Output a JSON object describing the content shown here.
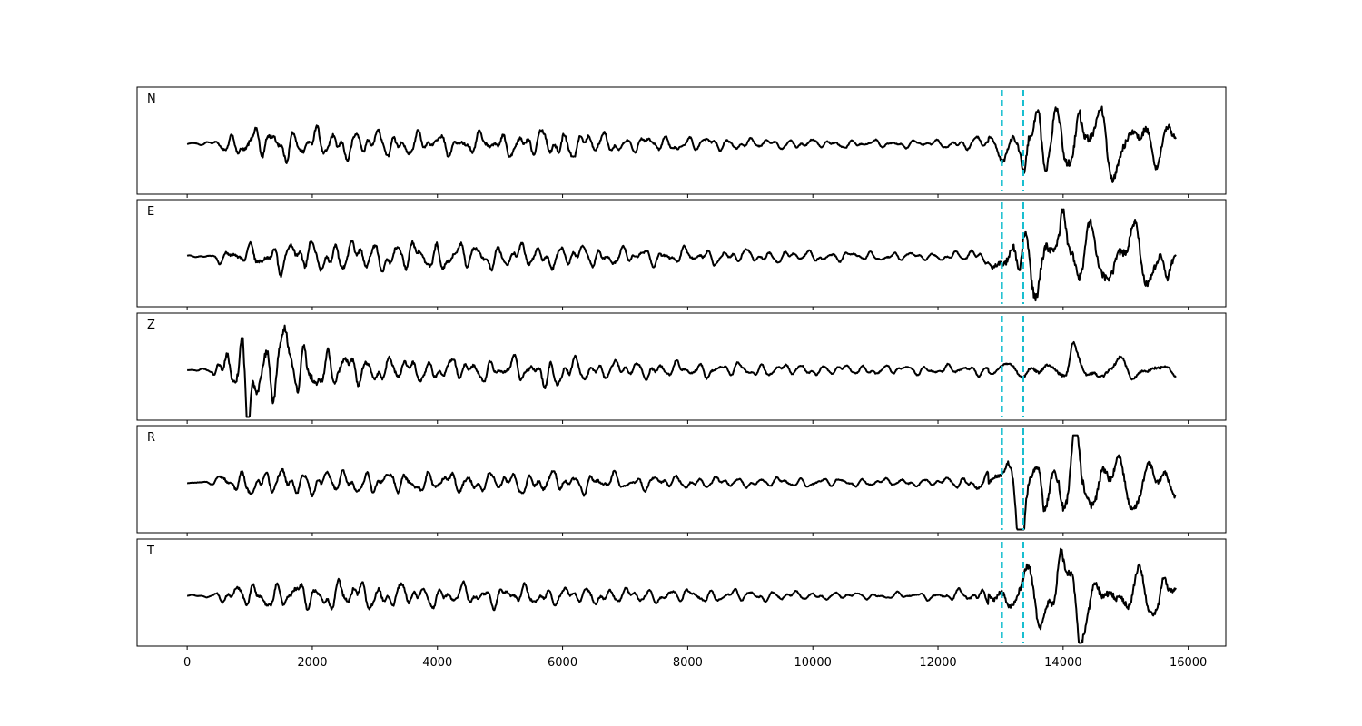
{
  "chart_data": {
    "type": "line",
    "title": "",
    "xlabel": "",
    "ylabel": "",
    "xlim": [
      -800,
      16600
    ],
    "x_ticks": [
      "0",
      "2000",
      "4000",
      "6000",
      "8000",
      "10000",
      "12000",
      "14000",
      "16000"
    ],
    "x_tick_values": [
      0,
      2000,
      4000,
      6000,
      8000,
      10000,
      12000,
      14000,
      16000
    ],
    "signal_range": [
      0,
      15800
    ],
    "grid": false,
    "pick_lines": [
      13020,
      13360
    ],
    "colors": {
      "trace": "#000000",
      "pick": "#17becf"
    },
    "panels": [
      {
        "name": "N",
        "envelope": [
          [
            0,
            0.02
          ],
          [
            400,
            0.06
          ],
          [
            500,
            0.18
          ],
          [
            1000,
            0.42
          ],
          [
            2000,
            0.4
          ],
          [
            3000,
            0.36
          ],
          [
            4000,
            0.28
          ],
          [
            5000,
            0.28
          ],
          [
            5300,
            0.34
          ],
          [
            6000,
            0.4
          ],
          [
            7000,
            0.22
          ],
          [
            8000,
            0.2
          ],
          [
            9000,
            0.14
          ],
          [
            10000,
            0.12
          ],
          [
            11000,
            0.1
          ],
          [
            12000,
            0.1
          ],
          [
            12800,
            0.2
          ],
          [
            13000,
            0.34
          ],
          [
            13400,
            0.95
          ],
          [
            14000,
            1.0
          ],
          [
            14500,
            0.9
          ],
          [
            15800,
            0.7
          ]
        ],
        "peaks": [
          [
            13380,
            -0.85
          ],
          [
            14250,
            0.95
          ],
          [
            13600,
            0.75
          ]
        ]
      },
      {
        "name": "E",
        "envelope": [
          [
            0,
            0.02
          ],
          [
            400,
            0.05
          ],
          [
            500,
            0.15
          ],
          [
            1500,
            0.42
          ],
          [
            2000,
            0.42
          ],
          [
            3000,
            0.4
          ],
          [
            4000,
            0.38
          ],
          [
            5000,
            0.32
          ],
          [
            6000,
            0.3
          ],
          [
            7000,
            0.24
          ],
          [
            8000,
            0.22
          ],
          [
            9000,
            0.18
          ],
          [
            10000,
            0.14
          ],
          [
            11000,
            0.12
          ],
          [
            12000,
            0.1
          ],
          [
            12800,
            0.2
          ],
          [
            13000,
            0.62
          ],
          [
            13400,
            0.95
          ],
          [
            14000,
            1.0
          ],
          [
            15000,
            0.8
          ],
          [
            15800,
            0.75
          ]
        ],
        "peaks": [
          [
            14000,
            0.95
          ],
          [
            13300,
            -0.78
          ],
          [
            15650,
            -0.7
          ]
        ]
      },
      {
        "name": "Z",
        "envelope": [
          [
            0,
            0.02
          ],
          [
            400,
            0.06
          ],
          [
            450,
            0.25
          ],
          [
            900,
            1.0
          ],
          [
            1500,
            0.75
          ],
          [
            2000,
            0.6
          ],
          [
            3000,
            0.35
          ],
          [
            4000,
            0.3
          ],
          [
            5000,
            0.28
          ],
          [
            5900,
            0.4
          ],
          [
            6500,
            0.25
          ],
          [
            8000,
            0.2
          ],
          [
            9000,
            0.18
          ],
          [
            10000,
            0.14
          ],
          [
            12000,
            0.12
          ],
          [
            13000,
            0.14
          ],
          [
            13400,
            0.24
          ],
          [
            14000,
            0.32
          ],
          [
            15000,
            0.28
          ],
          [
            15800,
            0.22
          ]
        ],
        "peaks": [
          [
            960,
            -1.0
          ],
          [
            1540,
            0.65
          ],
          [
            5900,
            -0.42
          ],
          [
            14150,
            0.42
          ]
        ]
      },
      {
        "name": "R",
        "envelope": [
          [
            0,
            0.02
          ],
          [
            400,
            0.05
          ],
          [
            500,
            0.2
          ],
          [
            1000,
            0.36
          ],
          [
            2000,
            0.34
          ],
          [
            3000,
            0.3
          ],
          [
            4000,
            0.26
          ],
          [
            5000,
            0.26
          ],
          [
            5500,
            0.3
          ],
          [
            7000,
            0.22
          ],
          [
            8000,
            0.16
          ],
          [
            9000,
            0.13
          ],
          [
            10000,
            0.12
          ],
          [
            11000,
            0.1
          ],
          [
            12000,
            0.1
          ],
          [
            12800,
            0.24
          ],
          [
            13000,
            0.42
          ],
          [
            13300,
            0.9
          ],
          [
            14000,
            0.95
          ],
          [
            15000,
            0.7
          ],
          [
            15800,
            0.55
          ]
        ],
        "peaks": [
          [
            13320,
            -0.9
          ],
          [
            14200,
            0.92
          ],
          [
            13700,
            -0.78
          ]
        ]
      },
      {
        "name": "T",
        "envelope": [
          [
            0,
            0.02
          ],
          [
            400,
            0.05
          ],
          [
            500,
            0.15
          ],
          [
            1000,
            0.34
          ],
          [
            2000,
            0.36
          ],
          [
            2700,
            0.42
          ],
          [
            3000,
            0.34
          ],
          [
            4000,
            0.28
          ],
          [
            5000,
            0.28
          ],
          [
            5500,
            0.26
          ],
          [
            7000,
            0.2
          ],
          [
            8000,
            0.18
          ],
          [
            9000,
            0.16
          ],
          [
            10000,
            0.1
          ],
          [
            11000,
            0.08
          ],
          [
            12000,
            0.1
          ],
          [
            12800,
            0.24
          ],
          [
            13000,
            0.52
          ],
          [
            13400,
            0.78
          ],
          [
            14000,
            0.82
          ],
          [
            15000,
            0.7
          ],
          [
            15800,
            0.62
          ]
        ],
        "peaks": [
          [
            14250,
            -0.82
          ],
          [
            13950,
            0.78
          ],
          [
            15600,
            0.56
          ]
        ]
      }
    ]
  }
}
